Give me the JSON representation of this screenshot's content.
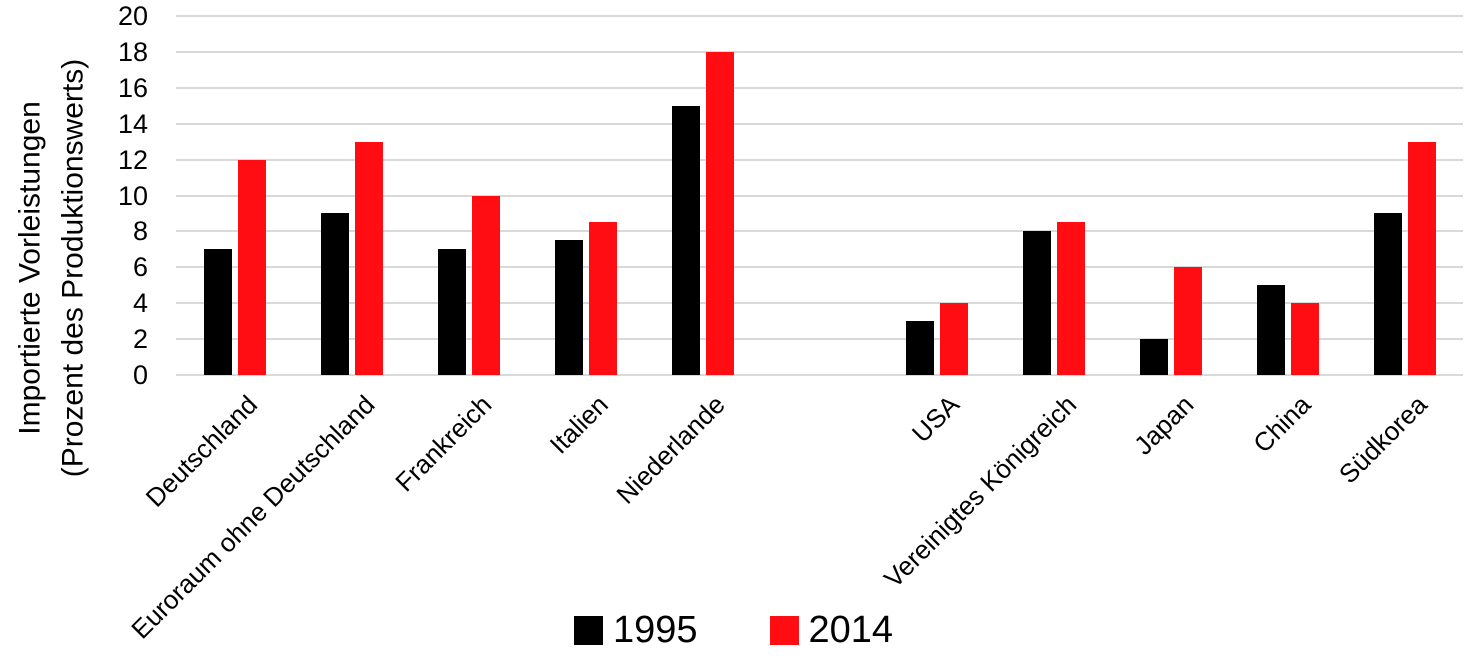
{
  "chart_data": {
    "type": "bar",
    "title": "",
    "ylabel_line1": "Importierte Vorleistungen",
    "ylabel_line2": "(Prozent des Produktionswerts)",
    "categories": [
      "Deutschland",
      "Euroraum ohne Deutschland",
      "Frankreich",
      "Italien",
      "Niederlande",
      "USA",
      "Vereinigtes Königreich",
      "Japan",
      "China",
      "Südkorea"
    ],
    "series": [
      {
        "name": "1995",
        "color": "#000000",
        "values": [
          7,
          9,
          7,
          7.5,
          15,
          3,
          8,
          2,
          5,
          9
        ]
      },
      {
        "name": "2014",
        "color": "#FF0D12",
        "values": [
          12,
          13,
          10,
          8.5,
          18,
          4,
          8.5,
          6,
          4,
          13
        ]
      }
    ],
    "ylim": [
      0,
      20
    ],
    "ytick_step": 2,
    "grid": true,
    "gridline_color": "#D9D9D9",
    "legend_position": "bottom",
    "spacer_after_category": "Niederlande"
  }
}
